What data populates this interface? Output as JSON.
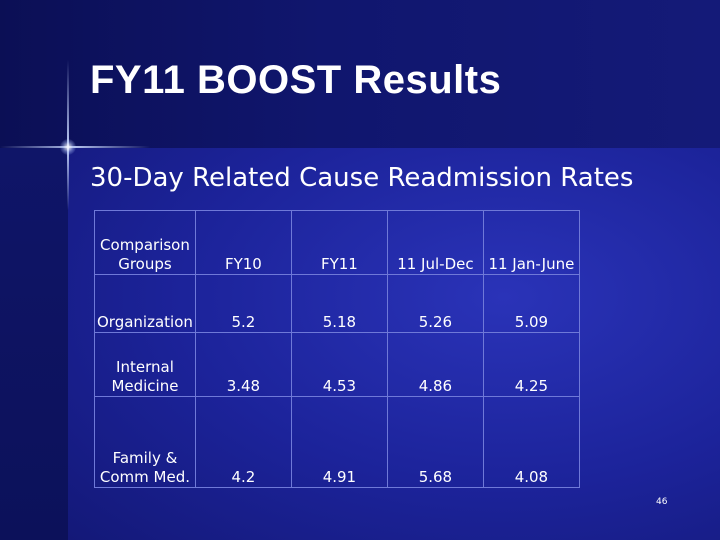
{
  "title": "FY11 BOOST Results",
  "subtitle": "30-Day Related Cause Readmission Rates",
  "table": {
    "header": {
      "group": "Comparison Groups",
      "fy10": "FY10",
      "fy11": "FY11",
      "jul_dec": "11 Jul-Dec",
      "jan_june": "11 Jan-June"
    },
    "rows": [
      {
        "group": "Organization",
        "fy10": "5.2",
        "fy11": "5.18",
        "jul_dec": "5.26",
        "jan_june": "5.09"
      },
      {
        "group": "Internal Medicine",
        "fy10": "3.48",
        "fy11": "4.53",
        "jul_dec": "4.86",
        "jan_june": "4.25"
      },
      {
        "group": "Family & Comm Med.",
        "fy10": "4.2",
        "fy11": "4.91",
        "jul_dec": "5.68",
        "jan_june": "4.08"
      }
    ]
  },
  "slide_number": "46",
  "colors": {
    "background": "#1c239a",
    "text": "#ffffff",
    "value_text": "#cc1f1f",
    "grid": "#6f79d8"
  }
}
